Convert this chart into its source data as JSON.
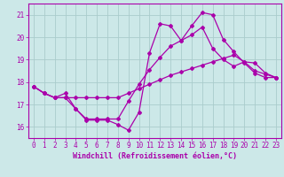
{
  "xlabel": "Windchill (Refroidissement éolien,°C)",
  "bg_color": "#cce8e8",
  "line_color": "#aa00aa",
  "grid_color": "#aacccc",
  "xlim": [
    -0.5,
    23.5
  ],
  "ylim": [
    15.5,
    21.5
  ],
  "yticks": [
    16,
    17,
    18,
    19,
    20,
    21
  ],
  "xticks": [
    0,
    1,
    2,
    3,
    4,
    5,
    6,
    7,
    8,
    9,
    10,
    11,
    12,
    13,
    14,
    15,
    16,
    17,
    18,
    19,
    20,
    21,
    22,
    23
  ],
  "line1_x": [
    0,
    1,
    2,
    3,
    4,
    5,
    6,
    7,
    8,
    9,
    10,
    11,
    12,
    13,
    14,
    15,
    16,
    17,
    18,
    19,
    20,
    21,
    22,
    23
  ],
  "line1_y": [
    17.8,
    17.5,
    17.3,
    17.3,
    16.8,
    16.3,
    16.3,
    16.3,
    16.1,
    15.85,
    16.65,
    19.3,
    20.6,
    20.5,
    19.85,
    20.5,
    21.1,
    21.0,
    19.9,
    19.35,
    18.85,
    18.4,
    18.2,
    18.2
  ],
  "line2_x": [
    0,
    1,
    2,
    3,
    4,
    5,
    6,
    7,
    8,
    9,
    10,
    11,
    12,
    13,
    14,
    15,
    16,
    17,
    18,
    19,
    20,
    21,
    22,
    23
  ],
  "line2_y": [
    17.8,
    17.5,
    17.3,
    17.5,
    16.8,
    16.35,
    16.35,
    16.35,
    16.35,
    17.15,
    17.9,
    18.55,
    19.1,
    19.6,
    19.85,
    20.1,
    20.45,
    19.5,
    19.0,
    18.7,
    18.9,
    18.85,
    18.4,
    18.2
  ],
  "line3_x": [
    0,
    1,
    2,
    3,
    4,
    5,
    6,
    7,
    8,
    9,
    10,
    11,
    12,
    13,
    14,
    15,
    16,
    17,
    18,
    19,
    20,
    21,
    22,
    23
  ],
  "line3_y": [
    17.8,
    17.5,
    17.3,
    17.3,
    17.3,
    17.3,
    17.3,
    17.3,
    17.3,
    17.5,
    17.7,
    17.9,
    18.1,
    18.3,
    18.45,
    18.6,
    18.75,
    18.9,
    19.05,
    19.2,
    18.9,
    18.5,
    18.35,
    18.2
  ],
  "marker": "D",
  "markersize": 2.0,
  "linewidth": 0.9,
  "tick_fontsize": 5.5,
  "label_fontsize": 6.0
}
